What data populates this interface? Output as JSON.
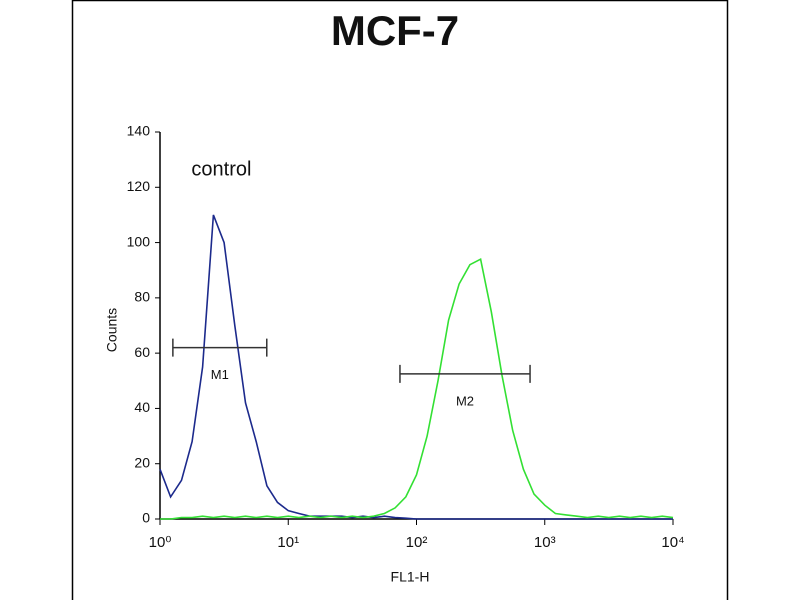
{
  "chart_data": {
    "type": "line",
    "title": "MCF-7",
    "xlabel": "FL1-H",
    "ylabel": "Counts",
    "log_x": true,
    "x": [
      1,
      1.21,
      1.47,
      1.78,
      2.15,
      2.61,
      3.16,
      3.83,
      4.64,
      5.62,
      6.81,
      8.25,
      10,
      12.1,
      14.7,
      17.8,
      21.5,
      26.1,
      31.6,
      38.3,
      46.4,
      56.2,
      68.1,
      82.5,
      100,
      121,
      147,
      178,
      215,
      261,
      316,
      383,
      464,
      562,
      681,
      825,
      1000,
      1210,
      1470,
      1780,
      2150,
      2610,
      3160,
      3830,
      4640,
      5620,
      6810,
      8250,
      10000
    ],
    "series": [
      {
        "name": "control",
        "color": "#1c2a8c",
        "values": [
          18,
          8,
          14,
          28,
          55,
          110,
          100,
          70,
          42,
          28,
          12,
          6,
          3,
          2,
          1,
          1,
          1,
          1,
          0.5,
          1,
          0.5,
          1,
          0.5,
          0.3,
          0,
          0,
          0,
          0,
          0,
          0,
          0,
          0,
          0,
          0,
          0,
          0,
          0,
          0,
          0,
          0,
          0,
          0,
          0,
          0,
          0,
          0,
          0,
          0,
          0
        ]
      },
      {
        "color": "#33e033",
        "values": [
          0,
          0,
          0.5,
          0.5,
          1,
          0.5,
          1,
          0.5,
          1,
          0.5,
          1,
          0.5,
          1,
          0.5,
          1,
          0.5,
          1,
          0.5,
          1,
          0.5,
          1,
          2,
          4,
          8,
          16,
          30,
          50,
          72,
          85,
          92,
          94,
          75,
          52,
          32,
          18,
          9,
          5,
          2,
          1.5,
          1,
          0.5,
          1,
          0.5,
          1,
          0.5,
          1,
          0.5,
          1,
          0.5
        ]
      }
    ],
    "markers": [
      {
        "label": "M1",
        "x": [
          1.26,
          6.8
        ],
        "y": 62
      },
      {
        "label": "M2",
        "x": [
          74.3,
          768
        ],
        "y": 52.5
      }
    ],
    "xlim": [
      1,
      10000
    ],
    "xticks": [
      {
        "value": 1,
        "label": "10⁰"
      },
      {
        "value": 10,
        "label": "10¹"
      },
      {
        "value": 100,
        "label": "10²"
      },
      {
        "value": 1000,
        "label": "10³"
      },
      {
        "value": 10000,
        "label": "10⁴"
      }
    ],
    "ylim": [
      0,
      140
    ],
    "yticks": [
      0,
      20,
      40,
      60,
      80,
      100,
      120,
      140
    ]
  }
}
